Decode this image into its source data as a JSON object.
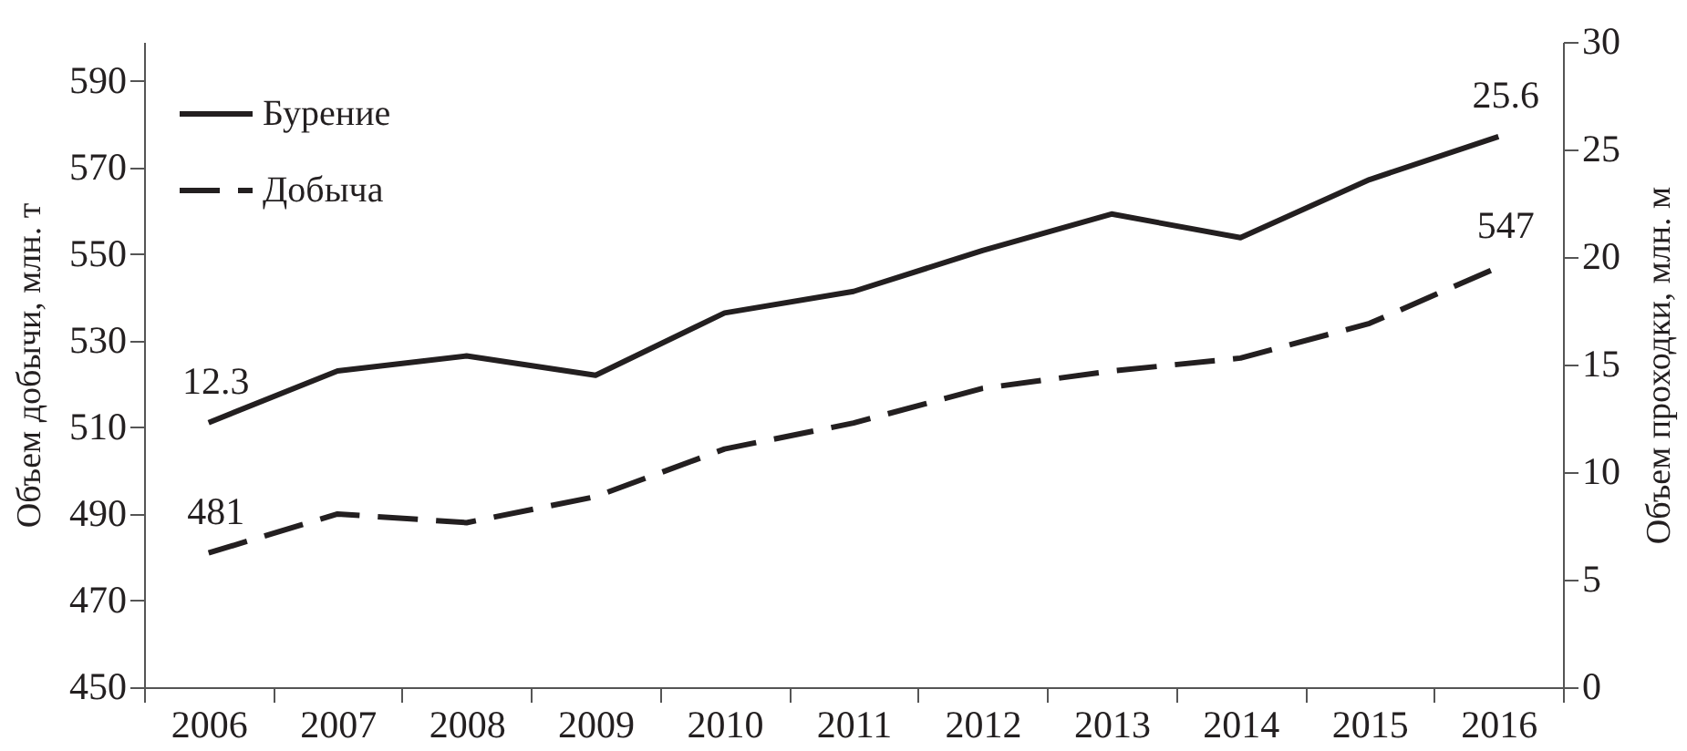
{
  "chart_data": {
    "type": "line",
    "xlabel": null,
    "ylabel": "Объем добычи, млн. т",
    "y2label": "Объем проходки, млн. м",
    "categories": [
      "2006",
      "2007",
      "2008",
      "2009",
      "2010",
      "2011",
      "2012",
      "2013",
      "2014",
      "2015",
      "2016"
    ],
    "series": [
      {
        "name": "Бурение",
        "color": "#231f20",
        "axis": "y2",
        "line_style": "solid",
        "values": [
          12.3,
          14.7,
          15.4,
          14.5,
          17.4,
          18.4,
          20.3,
          22.0,
          20.9,
          23.6,
          25.6
        ],
        "value_labels": [
          "12.3",
          null,
          null,
          null,
          null,
          null,
          null,
          null,
          null,
          null,
          "25.6"
        ]
      },
      {
        "name": "Добыча",
        "color": "#231f20",
        "line_style": "dashed",
        "values": [
          481,
          490,
          488,
          494,
          505,
          511,
          519,
          523,
          526,
          534,
          547
        ],
        "value_labels": [
          "481",
          null,
          null,
          null,
          null,
          null,
          null,
          null,
          null,
          null,
          "547"
        ]
      }
    ],
    "ylim": [
      450,
      599
    ],
    "yticks": [
      450,
      470,
      490,
      510,
      530,
      550,
      570,
      590
    ],
    "y2lim": [
      0,
      30
    ],
    "y2ticks": [
      0,
      5,
      10,
      15,
      20,
      25,
      30
    ],
    "legend": "top left",
    "grid": false,
    "marker": "none"
  }
}
